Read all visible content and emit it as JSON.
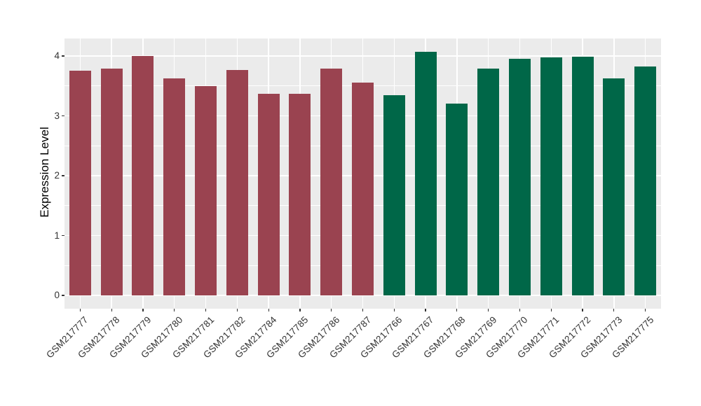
{
  "figure": {
    "background_color": "#FFFFFF",
    "panel_background_color": "#EBEBEB",
    "gridline_color": "#FFFFFF",
    "axis_tick_color": "#333333",
    "axis_text_color": "#333333",
    "axis_title_color": "#000000"
  },
  "chart_data": {
    "type": "bar",
    "title": "",
    "xlabel": "",
    "ylabel": "Expression Level",
    "ylim": [
      0,
      4.29
    ],
    "yticks": [
      0,
      1,
      2,
      3,
      4
    ],
    "y_minor_gridlines": [
      0.5,
      1.5,
      2.5,
      3.5
    ],
    "grid": "on",
    "legend": "none",
    "bar_orientation": "vertical",
    "categories": [
      "GSM217777",
      "GSM217778",
      "GSM217779",
      "GSM217780",
      "GSM217781",
      "GSM217782",
      "GSM217784",
      "GSM217785",
      "GSM217786",
      "GSM217787",
      "GSM217766",
      "GSM217767",
      "GSM217768",
      "GSM217769",
      "GSM217770",
      "GSM217771",
      "GSM217772",
      "GSM217773",
      "GSM217775"
    ],
    "values": [
      3.76,
      3.79,
      4.0,
      3.62,
      3.5,
      3.77,
      3.37,
      3.37,
      3.79,
      3.55,
      3.35,
      4.07,
      3.2,
      3.79,
      3.95,
      3.98,
      3.99,
      3.63,
      3.83
    ],
    "bar_colors": [
      "#9A4350",
      "#9A4350",
      "#9A4350",
      "#9A4350",
      "#9A4350",
      "#9A4350",
      "#9A4350",
      "#9A4350",
      "#9A4350",
      "#9A4350",
      "#006748",
      "#006748",
      "#006748",
      "#006748",
      "#006748",
      "#006748",
      "#006748",
      "#006748",
      "#006748"
    ],
    "group_colors": {
      "left_group": "#9A4350",
      "right_group": "#006748"
    }
  }
}
